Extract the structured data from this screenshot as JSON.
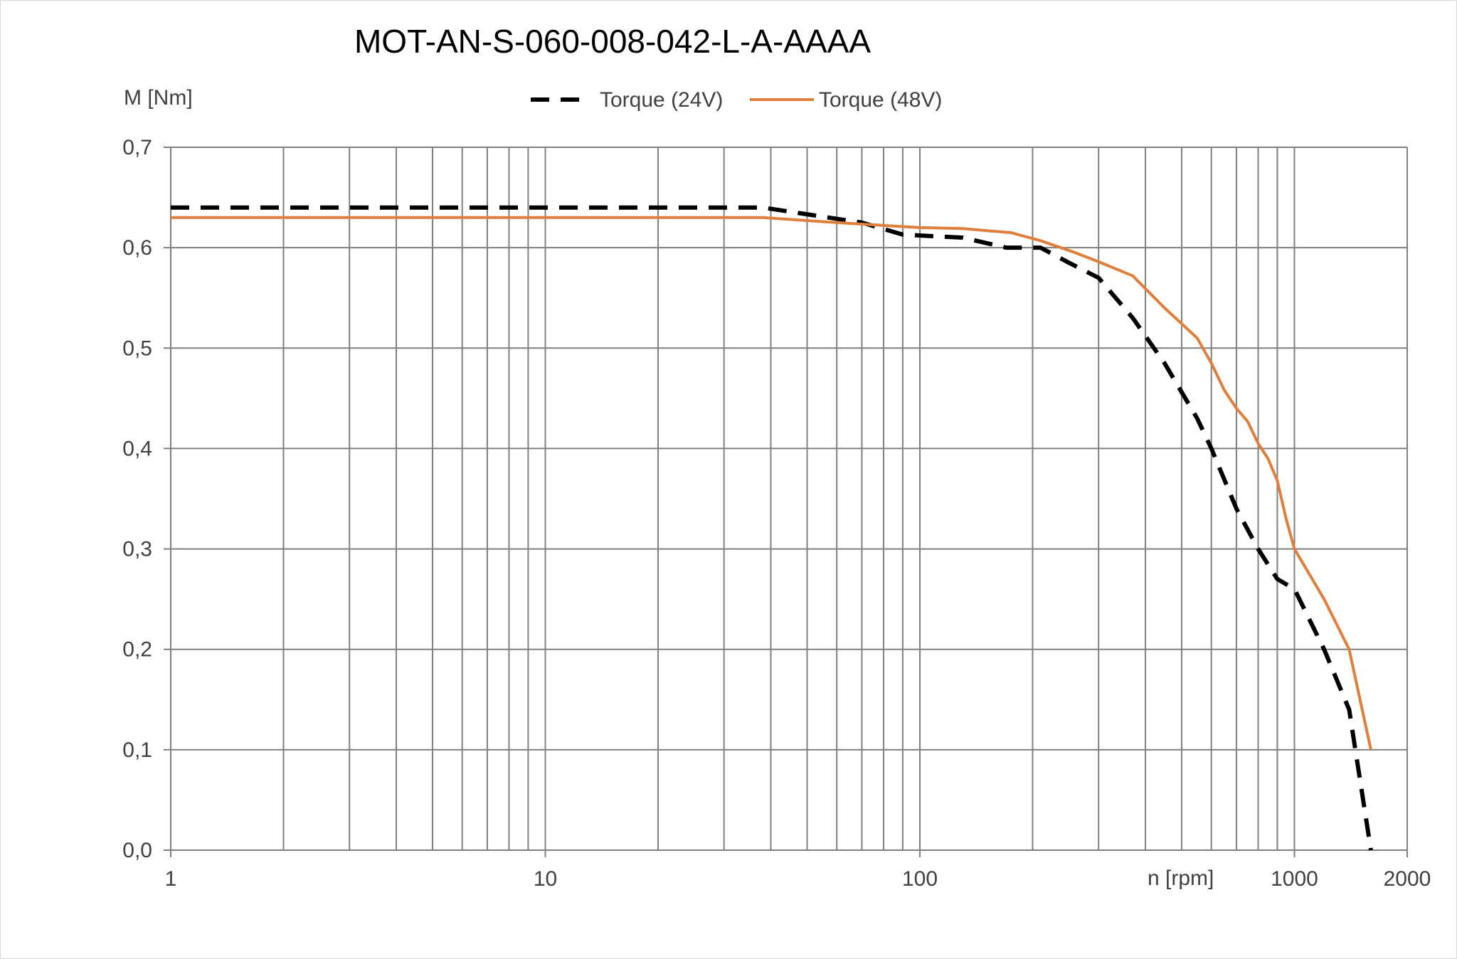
{
  "chart_data": {
    "type": "line",
    "title": "MOT-AN-S-060-008-042-L-A-AAAA",
    "xlabel": "n [rpm]",
    "ylabel": "M [Nm]",
    "x_scale": "log",
    "xlim": [
      1,
      2000
    ],
    "ylim": [
      0,
      0.7
    ],
    "x_ticks": [
      "1",
      "10",
      "100",
      "1000",
      "2000"
    ],
    "y_ticks": [
      "0,0",
      "0,1",
      "0,2",
      "0,3",
      "0,4",
      "0,5",
      "0,6",
      "0,7"
    ],
    "grid": true,
    "legend_position": "top",
    "series": [
      {
        "name": "Torque (24V)",
        "color": "#000000",
        "style": "dashed",
        "x": [
          1,
          38,
          70,
          90,
          130,
          170,
          210,
          250,
          300,
          370,
          450,
          550,
          600,
          700,
          800,
          900,
          1000,
          1200,
          1400,
          1600
        ],
        "y": [
          0.64,
          0.64,
          0.625,
          0.613,
          0.61,
          0.6,
          0.6,
          0.585,
          0.57,
          0.53,
          0.485,
          0.43,
          0.4,
          0.34,
          0.3,
          0.27,
          0.26,
          0.2,
          0.14,
          0.0
        ]
      },
      {
        "name": "Torque (48V)",
        "color": "#e07f3c",
        "style": "solid",
        "x": [
          1,
          38,
          60,
          100,
          130,
          175,
          210,
          260,
          300,
          370,
          450,
          550,
          600,
          650,
          700,
          750,
          800,
          850,
          900,
          950,
          1000,
          1200,
          1400,
          1600
        ],
        "y": [
          0.63,
          0.63,
          0.625,
          0.62,
          0.619,
          0.615,
          0.607,
          0.595,
          0.586,
          0.572,
          0.54,
          0.51,
          0.485,
          0.458,
          0.44,
          0.427,
          0.405,
          0.39,
          0.368,
          0.33,
          0.3,
          0.25,
          0.2,
          0.1
        ]
      }
    ]
  }
}
